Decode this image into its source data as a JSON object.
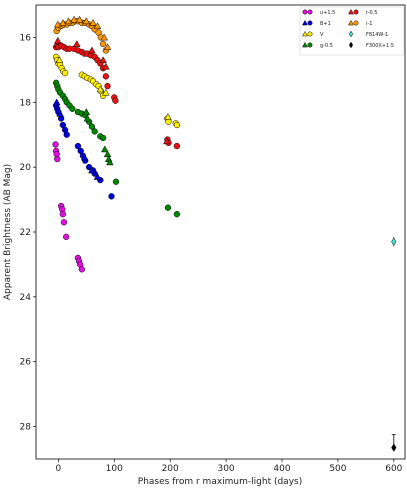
{
  "chart_data": {
    "type": "scatter",
    "xlabel": "Phases from r maximum-light (days)",
    "ylabel": "Apparent Brightness (AB Mag)",
    "xlim": [
      -40,
      620
    ],
    "ylim": [
      29.0,
      15.0
    ],
    "y_inverted": true,
    "xticks": [
      0,
      100,
      200,
      300,
      400,
      500,
      600
    ],
    "yticks": [
      16,
      18,
      20,
      22,
      24,
      26,
      28
    ],
    "legend_position": "top-right",
    "series": [
      {
        "name": "u+1.5",
        "color": "#e010e0",
        "marker": "circle",
        "points": [
          [
            -5,
            19.3
          ],
          [
            -4,
            19.5
          ],
          [
            -3,
            19.6
          ],
          [
            -2,
            19.75
          ],
          [
            5,
            21.2
          ],
          [
            7,
            21.3
          ],
          [
            8,
            21.45
          ],
          [
            10,
            21.7
          ],
          [
            14,
            22.15
          ],
          [
            35,
            22.8
          ],
          [
            37,
            22.9
          ],
          [
            39,
            23.0
          ],
          [
            42,
            23.15
          ]
        ]
      },
      {
        "name": "B+1",
        "color": "#0000dd",
        "marker": "circle",
        "points": [
          [
            -4,
            18.1
          ],
          [
            -2,
            18.2
          ],
          [
            0,
            18.3
          ],
          [
            5,
            18.5
          ],
          [
            8,
            18.7
          ],
          [
            12,
            18.85
          ],
          [
            15,
            19.0
          ],
          [
            35,
            19.35
          ],
          [
            40,
            19.5
          ],
          [
            44,
            19.65
          ],
          [
            48,
            19.8
          ],
          [
            55,
            20.0
          ],
          [
            62,
            20.1
          ],
          [
            65,
            20.2
          ],
          [
            75,
            20.4
          ],
          [
            95,
            20.9
          ]
        ]
      },
      {
        "name": "B+1",
        "color": "#0000dd",
        "marker": "triangle",
        "points": [
          [
            -3,
            18.0
          ],
          [
            3,
            18.35
          ],
          [
            47,
            19.7
          ],
          [
            60,
            20.1
          ],
          [
            70,
            20.3
          ]
        ]
      },
      {
        "name": "V",
        "color": "#ffee00",
        "marker": "circle",
        "points": [
          [
            -4,
            16.6
          ],
          [
            -2,
            16.7
          ],
          [
            0,
            16.8
          ],
          [
            3,
            16.85
          ],
          [
            6,
            16.95
          ],
          [
            9,
            17.05
          ],
          [
            12,
            17.1
          ],
          [
            42,
            17.15
          ],
          [
            47,
            17.2
          ],
          [
            52,
            17.25
          ],
          [
            58,
            17.3
          ],
          [
            62,
            17.35
          ],
          [
            68,
            17.45
          ],
          [
            72,
            17.5
          ],
          [
            76,
            17.65
          ],
          [
            80,
            17.8
          ],
          [
            195,
            18.5
          ],
          [
            197,
            18.6
          ],
          [
            210,
            18.65
          ],
          [
            212,
            18.7
          ]
        ]
      },
      {
        "name": "V",
        "color": "#ffee00",
        "marker": "triangle",
        "points": [
          [
            2,
            16.7
          ],
          [
            75,
            17.6
          ],
          [
            85,
            17.7
          ],
          [
            196,
            18.45
          ]
        ]
      },
      {
        "name": "g-0.5",
        "color": "#008800",
        "marker": "circle",
        "points": [
          [
            -4,
            17.4
          ],
          [
            -2,
            17.5
          ],
          [
            0,
            17.6
          ],
          [
            3,
            17.7
          ],
          [
            8,
            17.8
          ],
          [
            12,
            17.9
          ],
          [
            15,
            18.0
          ],
          [
            20,
            18.1
          ],
          [
            25,
            18.2
          ],
          [
            35,
            18.3
          ],
          [
            42,
            18.35
          ],
          [
            48,
            18.4
          ],
          [
            55,
            18.6
          ],
          [
            60,
            18.75
          ],
          [
            65,
            18.9
          ],
          [
            75,
            19.05
          ],
          [
            80,
            19.1
          ],
          [
            103,
            20.45
          ],
          [
            196,
            21.25
          ],
          [
            212,
            21.45
          ]
        ]
      },
      {
        "name": "g-0.5",
        "color": "#008800",
        "marker": "triangle",
        "points": [
          [
            50,
            18.3
          ],
          [
            52,
            18.5
          ],
          [
            83,
            19.45
          ],
          [
            88,
            19.6
          ],
          [
            90,
            19.75
          ],
          [
            92,
            19.85
          ]
        ]
      },
      {
        "name": "r-0.5",
        "color": "#ee1111",
        "marker": "circle",
        "points": [
          [
            -4,
            16.3
          ],
          [
            -2,
            16.25
          ],
          [
            0,
            16.3
          ],
          [
            5,
            16.25
          ],
          [
            10,
            16.3
          ],
          [
            15,
            16.35
          ],
          [
            20,
            16.35
          ],
          [
            28,
            16.35
          ],
          [
            35,
            16.4
          ],
          [
            42,
            16.45
          ],
          [
            47,
            16.5
          ],
          [
            52,
            16.5
          ],
          [
            58,
            16.55
          ],
          [
            65,
            16.6
          ],
          [
            70,
            16.7
          ],
          [
            75,
            16.8
          ],
          [
            80,
            16.95
          ],
          [
            85,
            17.2
          ],
          [
            88,
            17.5
          ],
          [
            100,
            17.85
          ],
          [
            102,
            17.95
          ],
          [
            195,
            19.15
          ],
          [
            197,
            19.25
          ],
          [
            212,
            19.35
          ]
        ]
      },
      {
        "name": "r-0.5",
        "color": "#ee1111",
        "marker": "triangle",
        "points": [
          [
            -1,
            16.1
          ],
          [
            33,
            16.2
          ],
          [
            60,
            16.4
          ],
          [
            80,
            16.7
          ],
          [
            85,
            16.9
          ],
          [
            194,
            19.2
          ]
        ]
      },
      {
        "name": "i-1",
        "color": "#ff9900",
        "marker": "circle",
        "points": [
          [
            -3,
            15.8
          ],
          [
            0,
            15.7
          ],
          [
            5,
            15.65
          ],
          [
            10,
            15.6
          ],
          [
            15,
            15.6
          ],
          [
            20,
            15.55
          ],
          [
            25,
            15.55
          ],
          [
            30,
            15.5
          ],
          [
            35,
            15.5
          ],
          [
            42,
            15.55
          ],
          [
            48,
            15.55
          ],
          [
            55,
            15.6
          ],
          [
            60,
            15.65
          ],
          [
            65,
            15.75
          ],
          [
            72,
            15.85
          ],
          [
            76,
            16.0
          ],
          [
            80,
            16.2
          ],
          [
            85,
            16.4
          ]
        ]
      },
      {
        "name": "i-1",
        "color": "#ff9900",
        "marker": "triangle",
        "points": [
          [
            -1,
            15.6
          ],
          [
            8,
            15.55
          ],
          [
            18,
            15.5
          ],
          [
            28,
            15.45
          ],
          [
            38,
            15.45
          ],
          [
            50,
            15.5
          ],
          [
            62,
            15.55
          ],
          [
            70,
            15.65
          ],
          [
            82,
            16.0
          ],
          [
            88,
            16.3
          ]
        ]
      },
      {
        "name": "F814W-1",
        "color": "#40e0d0",
        "marker": "diamond",
        "points": [
          [
            600,
            22.3
          ]
        ]
      },
      {
        "name": "F300X+1.5",
        "color": "#000000",
        "marker": "diamond",
        "points": [
          [
            600,
            28.65
          ]
        ]
      }
    ],
    "legend": [
      {
        "label": "u+1.5",
        "colors": [
          "#e010e0",
          "#e010e0"
        ],
        "markers": [
          "circle",
          "circle"
        ]
      },
      {
        "label": "B+1",
        "colors": [
          "#0000dd",
          "#0000dd"
        ],
        "markers": [
          "triangle",
          "circle"
        ]
      },
      {
        "label": "V",
        "colors": [
          "#ffee00",
          "#ffee00"
        ],
        "markers": [
          "triangle",
          "circle"
        ]
      },
      {
        "label": "g-0.5",
        "colors": [
          "#008800",
          "#008800"
        ],
        "markers": [
          "triangle",
          "circle"
        ]
      },
      {
        "label": "r-0.5",
        "colors": [
          "#ee1111",
          "#ee1111"
        ],
        "markers": [
          "triangle",
          "circle"
        ]
      },
      {
        "label": "i-1",
        "colors": [
          "#ff9900",
          "#ff9900"
        ],
        "markers": [
          "triangle",
          "circle"
        ]
      },
      {
        "label": "F814W-1",
        "colors": [
          "#40e0d0"
        ],
        "markers": [
          "diamond"
        ]
      },
      {
        "label": "F300X+1.5",
        "colors": [
          "#000000"
        ],
        "markers": [
          "diamond"
        ]
      }
    ]
  }
}
